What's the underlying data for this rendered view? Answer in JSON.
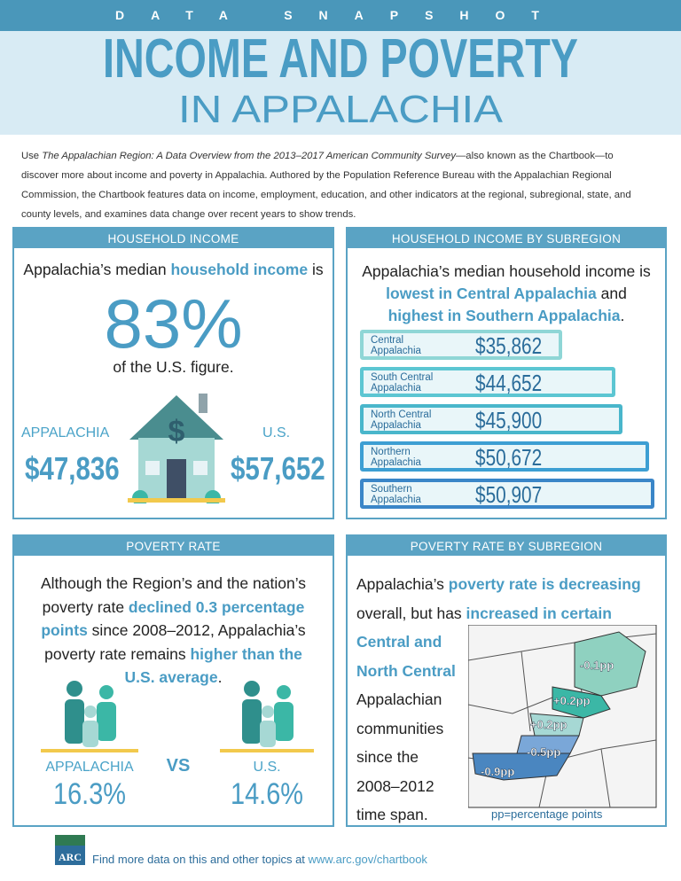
{
  "header": {
    "kicker": "DATA SNAPSHOT",
    "title": "INCOME AND POVERTY",
    "subtitle": "IN APPALACHIA"
  },
  "intro": {
    "before": "Use ",
    "source_title": "The Appalachian Region: A Data Overview from the 2013–2017 American Community Survey",
    "after": "—also known as the Chartbook—to discover more about income and poverty in Appalachia. Authored by the Population Reference Bureau with the Appalachian Regional Commission, the Chartbook features data on income, employment, education, and other indicators at the regional, subregional, state, and county levels, and examines data change over recent years to show trends."
  },
  "household_income": {
    "heading": "HOUSEHOLD INCOME",
    "lines": [
      [
        {
          "text": "Appalachia’s median "
        },
        {
          "text": "household income",
          "highlight": true
        },
        {
          "text": " is"
        }
      ]
    ],
    "share": "83%",
    "share_caption": "of the U.S. figure.",
    "appalachia_label": "APPALACHIA",
    "appalachia_value": "$47,836",
    "us_label": "U.S.",
    "us_value": "$57,652"
  },
  "income_by_subregion": {
    "heading": "HOUSEHOLD INCOME BY SUBREGION",
    "lines": [
      [
        {
          "text": "Appalachia’s median household income is"
        }
      ],
      [
        {
          "text": "lowest in Central Appalachia",
          "highlight": true
        },
        {
          "text": " and"
        }
      ],
      [
        {
          "text": "highest in Southern Appalachia",
          "highlight": true
        },
        {
          "text": "."
        }
      ]
    ],
    "rows": [
      {
        "name": "Central Appalachia",
        "value": "$35,862"
      },
      {
        "name": "South Central Appalachia",
        "value": "$44,652"
      },
      {
        "name": "North Central Appalachia",
        "value": "$45,900"
      },
      {
        "name": "Northern Appalachia",
        "value": "$50,672"
      },
      {
        "name": "Southern Appalachia",
        "value": "$50,907"
      }
    ]
  },
  "poverty_rate": {
    "heading": "POVERTY RATE",
    "lines": [
      [
        {
          "text": "Although the Region’s and the nation’s"
        }
      ],
      [
        {
          "text": "poverty rate "
        },
        {
          "text": "declined 0.3 percentage",
          "highlight": true
        }
      ],
      [
        {
          "text": "points",
          "highlight": true
        },
        {
          "text": " since 2008–2012, Appalachia’s"
        }
      ],
      [
        {
          "text": "poverty rate remains "
        },
        {
          "text": "higher than the",
          "highlight": true
        }
      ],
      [
        {
          "text": "U.S. average",
          "highlight": true
        },
        {
          "text": "."
        }
      ]
    ],
    "appalachia_label": "APPALACHIA",
    "appalachia_value": "16.3%",
    "vs": "VS",
    "us_label": "U.S.",
    "us_value": "14.6%"
  },
  "poverty_by_subregion": {
    "heading": "POVERTY RATE BY SUBREGION",
    "lines": [
      [
        {
          "text": "Appalachia’s "
        },
        {
          "text": "poverty rate is decreasing",
          "highlight": true
        }
      ],
      [
        {
          "text": "overall, but has "
        },
        {
          "text": "increased in certain",
          "highlight": true
        }
      ],
      [
        {
          "text": "Central and",
          "highlight": true
        }
      ],
      [
        {
          "text": "North Central",
          "highlight": true
        }
      ],
      [
        {
          "text": "Appalachian"
        }
      ],
      [
        {
          "text": "communities"
        }
      ],
      [
        {
          "text": "since the"
        }
      ],
      [
        {
          "text": "2008–2012"
        }
      ],
      [
        {
          "text": "time span."
        }
      ]
    ],
    "map_labels": [
      "-0.1pp",
      "+0.2pp",
      "+0.2pp",
      "-0.5pp",
      "-0.9pp"
    ],
    "caption": "pp=percentage points"
  },
  "footer": {
    "logo": "ARC",
    "text": "Find more data on this and other topics at ",
    "link": "www.arc.gov/chartbook"
  }
}
